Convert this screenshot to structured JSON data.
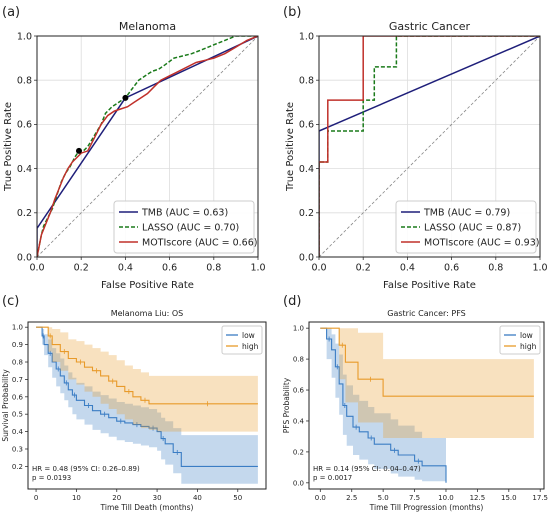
{
  "panels": [
    {
      "letter": "(a)"
    },
    {
      "letter": "(b)"
    },
    {
      "letter": "(c)"
    },
    {
      "letter": "(d)"
    }
  ],
  "chart_data": [
    {
      "type": "line",
      "title": "Melanoma",
      "xlabel": "False Positive Rate",
      "ylabel": "True Positive Rate",
      "xlim": [
        0,
        1
      ],
      "ylim": [
        0,
        1
      ],
      "xticks": [
        "0.0",
        "0.2",
        "0.4",
        "0.6",
        "0.8",
        "1.0"
      ],
      "yticks": [
        "0.0",
        "0.2",
        "0.4",
        "0.6",
        "0.8",
        "1.0"
      ],
      "grid": true,
      "legend": "bottom-right",
      "series": [
        {
          "name": "TMB (AUC = 0.63)",
          "color": "#1f1f7a",
          "style": "solid",
          "x": [
            0,
            0,
            0.4,
            1.0
          ],
          "y": [
            0,
            0.13,
            0.72,
            1.0
          ]
        },
        {
          "name": "LASSO (AUC = 0.70)",
          "color": "#1a7a1a",
          "style": "dashed",
          "x": [
            0,
            0.01,
            0.02,
            0.03,
            0.05,
            0.07,
            0.09,
            0.11,
            0.13,
            0.15,
            0.17,
            0.19,
            0.21,
            0.23,
            0.26,
            0.29,
            0.31,
            0.34,
            0.37,
            0.4,
            0.43,
            0.46,
            0.49,
            0.52,
            0.55,
            0.58,
            0.62,
            0.66,
            0.7,
            0.75,
            0.8,
            0.85,
            0.9,
            0.95,
            1.0
          ],
          "y": [
            0,
            0.05,
            0.1,
            0.14,
            0.18,
            0.22,
            0.28,
            0.34,
            0.38,
            0.41,
            0.45,
            0.48,
            0.48,
            0.5,
            0.55,
            0.6,
            0.65,
            0.68,
            0.7,
            0.72,
            0.76,
            0.8,
            0.82,
            0.84,
            0.85,
            0.87,
            0.9,
            0.91,
            0.92,
            0.94,
            0.96,
            0.98,
            1.0,
            1.0,
            1.0
          ]
        },
        {
          "name": "MOTIscore (AUC = 0.66)",
          "color": "#c0302a",
          "style": "solid",
          "x": [
            0,
            0.01,
            0.02,
            0.04,
            0.06,
            0.08,
            0.1,
            0.12,
            0.14,
            0.16,
            0.18,
            0.2,
            0.23,
            0.26,
            0.29,
            0.32,
            0.35,
            0.38,
            0.41,
            0.44,
            0.47,
            0.5,
            0.53,
            0.56,
            0.6,
            0.64,
            0.68,
            0.72,
            0.76,
            0.8,
            0.85,
            0.9,
            0.95,
            1.0
          ],
          "y": [
            0,
            0.05,
            0.1,
            0.15,
            0.2,
            0.26,
            0.31,
            0.36,
            0.4,
            0.43,
            0.45,
            0.47,
            0.48,
            0.54,
            0.6,
            0.64,
            0.66,
            0.67,
            0.68,
            0.7,
            0.72,
            0.74,
            0.77,
            0.8,
            0.82,
            0.84,
            0.86,
            0.88,
            0.89,
            0.9,
            0.92,
            0.95,
            0.98,
            1.0
          ]
        }
      ],
      "points": [
        {
          "x": 0.19,
          "y": 0.48
        },
        {
          "x": 0.4,
          "y": 0.72
        }
      ]
    },
    {
      "type": "line",
      "title": "Gastric Cancer",
      "xlabel": "False Positive Rate",
      "ylabel": "True Positive Rate",
      "xlim": [
        0,
        1
      ],
      "ylim": [
        0,
        1
      ],
      "xticks": [
        "0.0",
        "0.2",
        "0.4",
        "0.6",
        "0.8",
        "1.0"
      ],
      "yticks": [
        "0.0",
        "0.2",
        "0.4",
        "0.6",
        "0.8",
        "1.0"
      ],
      "grid": true,
      "legend": "bottom-right",
      "series": [
        {
          "name": "TMB (AUC = 0.79)",
          "color": "#1f1f7a",
          "style": "solid",
          "x": [
            0,
            0,
            1.0
          ],
          "y": [
            0,
            0.57,
            1.0
          ]
        },
        {
          "name": "LASSO (AUC = 0.87)",
          "color": "#1a7a1a",
          "style": "dashed",
          "x": [
            0,
            0,
            0.04,
            0.04,
            0.12,
            0.12,
            0.2,
            0.2,
            0.25,
            0.25,
            0.35,
            0.35,
            1.0
          ],
          "y": [
            0,
            0.43,
            0.43,
            0.57,
            0.57,
            0.57,
            0.57,
            0.71,
            0.71,
            0.86,
            0.86,
            1.0,
            1.0
          ]
        },
        {
          "name": "MOTIscore (AUC = 0.93)",
          "color": "#c0302a",
          "style": "solid",
          "x": [
            0,
            0,
            0.04,
            0.04,
            0.2,
            0.2,
            1.0
          ],
          "y": [
            0,
            0.43,
            0.43,
            0.71,
            0.71,
            1.0,
            1.0
          ]
        }
      ]
    },
    {
      "type": "line",
      "title": "Melanoma Liu: OS",
      "xlabel": "Time Till Death (months)",
      "ylabel": "Survival Probability",
      "xlim": [
        -2,
        57
      ],
      "ylim": [
        0.07,
        1.03
      ],
      "xticks": [
        "0",
        "10",
        "20",
        "30",
        "40",
        "50"
      ],
      "yticks": [
        "0.2",
        "0.3",
        "0.4",
        "0.5",
        "0.6",
        "0.7",
        "0.8",
        "0.9",
        "1.0"
      ],
      "legend": "top-right",
      "annotation": [
        "HR = 0.48 (95% CI: 0.26–0.89)",
        "p = 0.0193"
      ],
      "series": [
        {
          "name": "low",
          "color": "#3b7dc4",
          "x": [
            0,
            1.5,
            2,
            3,
            4,
            5,
            6,
            7,
            8,
            9,
            10,
            12,
            14,
            16,
            18,
            20,
            22,
            24,
            26,
            28,
            30,
            31,
            32,
            34,
            36,
            55
          ],
          "y": [
            1.0,
            0.95,
            0.9,
            0.85,
            0.8,
            0.76,
            0.72,
            0.68,
            0.64,
            0.61,
            0.58,
            0.55,
            0.52,
            0.5,
            0.48,
            0.46,
            0.45,
            0.44,
            0.43,
            0.42,
            0.4,
            0.36,
            0.33,
            0.28,
            0.2,
            0.2
          ],
          "lower": [
            1.0,
            0.9,
            0.84,
            0.77,
            0.71,
            0.66,
            0.62,
            0.58,
            0.54,
            0.5,
            0.47,
            0.44,
            0.41,
            0.39,
            0.37,
            0.35,
            0.34,
            0.33,
            0.32,
            0.31,
            0.29,
            0.24,
            0.21,
            0.16,
            0.1,
            0.1
          ],
          "upper": [
            1.0,
            0.99,
            0.96,
            0.93,
            0.88,
            0.85,
            0.82,
            0.78,
            0.74,
            0.71,
            0.68,
            0.66,
            0.63,
            0.61,
            0.59,
            0.57,
            0.56,
            0.55,
            0.54,
            0.53,
            0.51,
            0.48,
            0.46,
            0.42,
            0.38,
            0.38
          ]
        },
        {
          "name": "high",
          "color": "#e89a2a",
          "x": [
            0,
            3,
            4,
            6,
            8,
            10,
            12,
            14,
            16,
            18,
            20,
            22,
            24,
            26,
            28,
            30,
            55
          ],
          "y": [
            1.0,
            0.95,
            0.9,
            0.86,
            0.82,
            0.8,
            0.77,
            0.75,
            0.72,
            0.69,
            0.66,
            0.63,
            0.6,
            0.58,
            0.56,
            0.56,
            0.56
          ],
          "lower": [
            1.0,
            0.86,
            0.8,
            0.75,
            0.7,
            0.67,
            0.63,
            0.6,
            0.56,
            0.53,
            0.5,
            0.47,
            0.44,
            0.42,
            0.41,
            0.4,
            0.4
          ],
          "upper": [
            1.0,
            1.0,
            0.99,
            0.97,
            0.93,
            0.92,
            0.9,
            0.88,
            0.86,
            0.84,
            0.81,
            0.78,
            0.76,
            0.74,
            0.72,
            0.72,
            0.72
          ]
        }
      ]
    },
    {
      "type": "line",
      "title": "Gastric Cancer: PFS",
      "xlabel": "Time Till Progression (months)",
      "ylabel": "PFS Probability",
      "xlim": [
        -0.9,
        17.8
      ],
      "ylim": [
        -0.04,
        1.04
      ],
      "xticks": [
        "0.0",
        "2.5",
        "5.0",
        "7.5",
        "10.0",
        "12.5",
        "15.0",
        "17.5"
      ],
      "yticks": [
        "0.0",
        "0.2",
        "0.4",
        "0.6",
        "0.8",
        "1.0"
      ],
      "legend": "top-right",
      "annotation": [
        "HR = 0.14 (95% CI: 0.04–0.47)",
        "p = 0.0017"
      ],
      "series": [
        {
          "name": "low",
          "color": "#3b7dc4",
          "x": [
            0,
            0.5,
            0.9,
            1.2,
            1.5,
            1.8,
            2.1,
            2.6,
            3.1,
            3.8,
            4.3,
            5.6,
            6.2,
            7.5,
            8.1,
            10.0
          ],
          "y": [
            1.0,
            0.93,
            0.86,
            0.75,
            0.64,
            0.5,
            0.43,
            0.36,
            0.33,
            0.29,
            0.25,
            0.21,
            0.18,
            0.14,
            0.11,
            0.0
          ],
          "lower": [
            1.0,
            0.8,
            0.68,
            0.55,
            0.44,
            0.31,
            0.24,
            0.18,
            0.15,
            0.12,
            0.09,
            0.06,
            0.04,
            0.02,
            0.01,
            0.0
          ],
          "upper": [
            1.0,
            1.0,
            0.96,
            0.9,
            0.83,
            0.7,
            0.63,
            0.57,
            0.53,
            0.49,
            0.45,
            0.41,
            0.37,
            0.33,
            0.29,
            0.29
          ]
        },
        {
          "name": "high",
          "color": "#e89a2a",
          "x": [
            0,
            1.5,
            2.0,
            3.0,
            5.0,
            17.0
          ],
          "y": [
            1.0,
            0.89,
            0.78,
            0.67,
            0.56,
            0.56
          ],
          "lower": [
            1.0,
            0.67,
            0.52,
            0.39,
            0.29,
            0.29
          ],
          "upper": [
            1.0,
            1.0,
            1.0,
            0.97,
            0.8,
            0.8
          ]
        }
      ]
    }
  ]
}
